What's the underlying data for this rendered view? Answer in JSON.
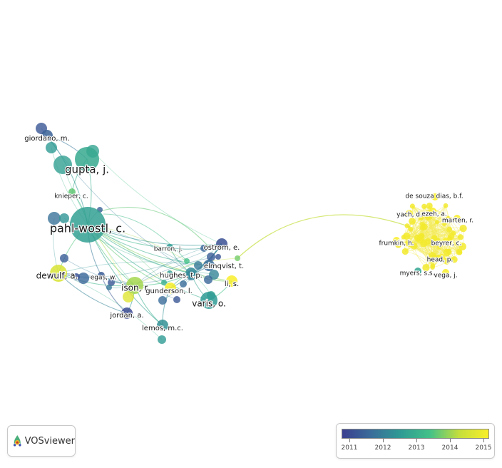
{
  "app": {
    "name": "VOSviewer"
  },
  "colors": {
    "gradient": [
      "#3b3f8f",
      "#3a6d9a",
      "#2f9b94",
      "#43c188",
      "#c5de3c",
      "#f8ef2a"
    ],
    "edge_default": "#b0c4de"
  },
  "nodes": [
    {
      "id": "giordano",
      "label": "giordano, m.",
      "year": 2011.6,
      "size": "small"
    },
    {
      "id": "gupta",
      "label": "gupta, j.",
      "year": 2012.9,
      "size": "large"
    },
    {
      "id": "knieper",
      "label": "knieper, c.",
      "year": 2013.6,
      "size": "tiny"
    },
    {
      "id": "pahlwostl",
      "label": "pahl-wostl, c.",
      "year": 2012.7,
      "size": "xlarge"
    },
    {
      "id": "dewulf",
      "label": "dewulf, a.",
      "year": 2014.5,
      "size": "medium"
    },
    {
      "id": "egas",
      "label": "egas, w.",
      "year": 2011.5,
      "size": "tiny"
    },
    {
      "id": "ison",
      "label": "ison, r.",
      "year": 2014.0,
      "size": "medium"
    },
    {
      "id": "jordan",
      "label": "jordan, a.",
      "year": 2011.2,
      "size": "small"
    },
    {
      "id": "lemos",
      "label": "lemos, m.c.",
      "year": 2012.4,
      "size": "small"
    },
    {
      "id": "barron",
      "label": "barron, j.",
      "year": 2012.6,
      "size": "tiny"
    },
    {
      "id": "ostrom",
      "label": "ostrom, e.",
      "year": 2011.3,
      "size": "small"
    },
    {
      "id": "hughes",
      "label": "hughes, t.p.",
      "year": 2012.3,
      "size": "small"
    },
    {
      "id": "elmqvist",
      "label": "elmqvist, t.",
      "year": 2011.8,
      "size": "small"
    },
    {
      "id": "li",
      "label": "li, s.",
      "year": 2015.0,
      "size": "small"
    },
    {
      "id": "gunderson",
      "label": "gunderson, l.",
      "year": 2015.0,
      "size": "small"
    },
    {
      "id": "varis",
      "label": "varis, o.",
      "year": 2012.6,
      "size": "medium"
    },
    {
      "id": "desouza",
      "label": "de souza dias, b.f.",
      "year": 2015.0,
      "size": "tiny"
    },
    {
      "id": "yach",
      "label": "yach, d.",
      "year": 2015.0,
      "size": "tiny"
    },
    {
      "id": "ezeh",
      "label": "ezeh, a.",
      "year": 2015.0,
      "size": "tiny"
    },
    {
      "id": "marten",
      "label": "marten, r.",
      "year": 2015.0,
      "size": "tiny"
    },
    {
      "id": "frumkin",
      "label": "frumkin, h.",
      "year": 2015.0,
      "size": "tiny"
    },
    {
      "id": "beyrer",
      "label": "beyrer, c.",
      "year": 2015.0,
      "size": "tiny"
    },
    {
      "id": "head",
      "label": "head, p.",
      "year": 2015.0,
      "size": "tiny"
    },
    {
      "id": "myers",
      "label": "myers, s.s.",
      "year": 2012.8,
      "size": "tiny"
    },
    {
      "id": "vega",
      "label": "vega, j.",
      "year": 2015.0,
      "size": "tiny"
    }
  ],
  "legend": {
    "ticks": [
      "2011",
      "2012",
      "2013",
      "2014",
      "2015"
    ]
  }
}
